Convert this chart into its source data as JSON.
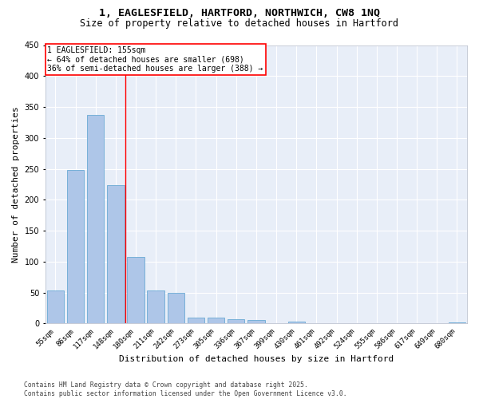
{
  "title1": "1, EAGLESFIELD, HARTFORD, NORTHWICH, CW8 1NQ",
  "title2": "Size of property relative to detached houses in Hartford",
  "xlabel": "Distribution of detached houses by size in Hartford",
  "ylabel": "Number of detached properties",
  "categories": [
    "55sqm",
    "86sqm",
    "117sqm",
    "148sqm",
    "180sqm",
    "211sqm",
    "242sqm",
    "273sqm",
    "305sqm",
    "336sqm",
    "367sqm",
    "399sqm",
    "430sqm",
    "461sqm",
    "492sqm",
    "524sqm",
    "555sqm",
    "586sqm",
    "617sqm",
    "649sqm",
    "680sqm"
  ],
  "values": [
    53,
    248,
    337,
    224,
    107,
    53,
    50,
    10,
    10,
    7,
    6,
    0,
    3,
    0,
    0,
    0,
    0,
    0,
    0,
    0,
    2
  ],
  "bar_color": "#aec6e8",
  "bar_edge_color": "#6aaad4",
  "vline_x": 3.5,
  "vline_color": "red",
  "annotation_text": "1 EAGLESFIELD: 155sqm\n← 64% of detached houses are smaller (698)\n36% of semi-detached houses are larger (388) →",
  "annotation_box_color": "white",
  "annotation_box_edge_color": "red",
  "ylim": [
    0,
    450
  ],
  "yticks": [
    0,
    50,
    100,
    150,
    200,
    250,
    300,
    350,
    400,
    450
  ],
  "footnote": "Contains HM Land Registry data © Crown copyright and database right 2025.\nContains public sector information licensed under the Open Government Licence v3.0.",
  "bg_color": "#e8eef8",
  "grid_color": "white",
  "title_fontsize": 9.5,
  "subtitle_fontsize": 8.5,
  "tick_fontsize": 6.5,
  "ylabel_fontsize": 8,
  "xlabel_fontsize": 8,
  "footnote_fontsize": 5.8,
  "annotation_fontsize": 7.0
}
